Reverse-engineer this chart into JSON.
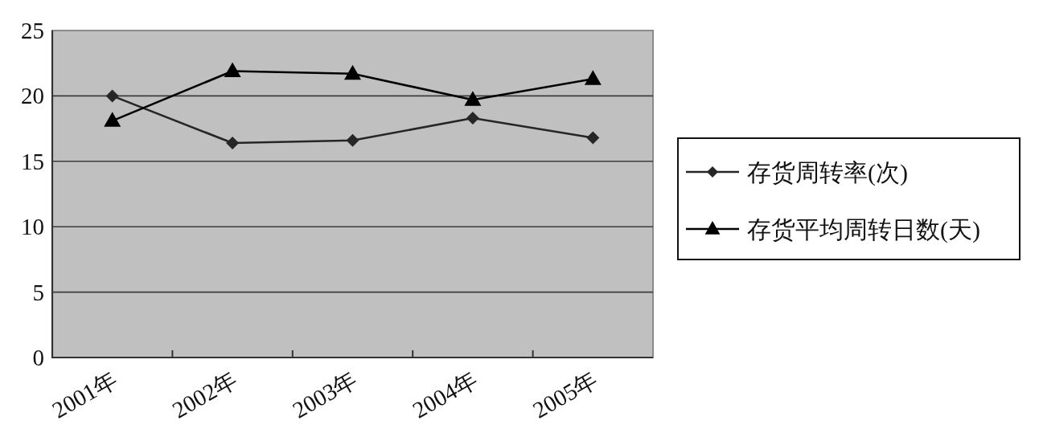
{
  "chart_data": {
    "type": "line",
    "categories": [
      "2001年",
      "2002年",
      "2003年",
      "2004年",
      "2005年"
    ],
    "series": [
      {
        "name": "存货周转率(次)",
        "color": "#262626",
        "marker": "diamond",
        "values": [
          20.0,
          16.4,
          16.6,
          18.3,
          16.8
        ]
      },
      {
        "name": "存货平均周转日数(天)",
        "color": "#000000",
        "marker": "triangle",
        "values": [
          18.1,
          21.9,
          21.7,
          19.7,
          21.3
        ]
      }
    ],
    "ylim": [
      0,
      25
    ],
    "yticks": [
      0,
      5,
      10,
      15,
      20,
      25
    ],
    "grid": "y",
    "legend": "right",
    "line_style": "solid"
  }
}
